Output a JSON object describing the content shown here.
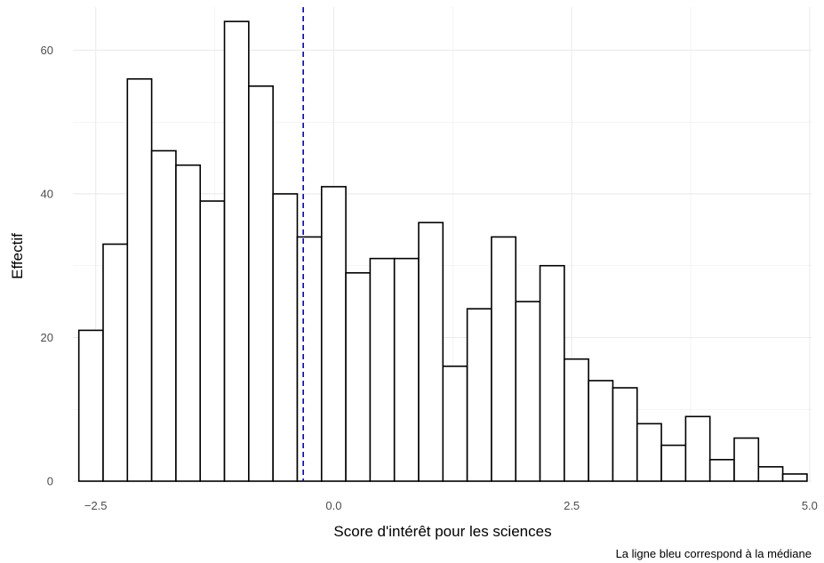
{
  "chart_data": {
    "type": "bar",
    "xlabel": "Score d'intérêt pour les sciences",
    "ylabel": "Effectif",
    "caption": "La ligne bleu correspond à la médiane",
    "xlim": [
      -2.74,
      5.02
    ],
    "ylim": [
      0,
      66
    ],
    "x_ticks": [
      -2.5,
      0.0,
      2.5,
      5.0
    ],
    "x_tick_labels": [
      "−2.5",
      "0.0",
      "2.5",
      "5.0"
    ],
    "y_ticks": [
      0,
      20,
      40,
      60
    ],
    "y_tick_labels": [
      "0",
      "20",
      "40",
      "60"
    ],
    "bin_width": 0.255,
    "bin_centers": [
      -2.55,
      -2.295,
      -2.04,
      -1.785,
      -1.53,
      -1.275,
      -1.02,
      -0.765,
      -0.51,
      -0.255,
      0.0,
      0.255,
      0.51,
      0.765,
      1.02,
      1.275,
      1.53,
      1.785,
      2.04,
      2.295,
      2.55,
      2.805,
      3.06,
      3.315,
      3.57,
      3.825,
      4.08,
      4.335,
      4.59,
      4.845
    ],
    "values": [
      21,
      33,
      56,
      46,
      44,
      39,
      64,
      55,
      40,
      34,
      41,
      29,
      31,
      31,
      36,
      16,
      24,
      34,
      25,
      30,
      17,
      14,
      13,
      8,
      5,
      9,
      3,
      6,
      2,
      1
    ],
    "median": -0.32,
    "median_color": "#0000cc",
    "grid": true
  }
}
